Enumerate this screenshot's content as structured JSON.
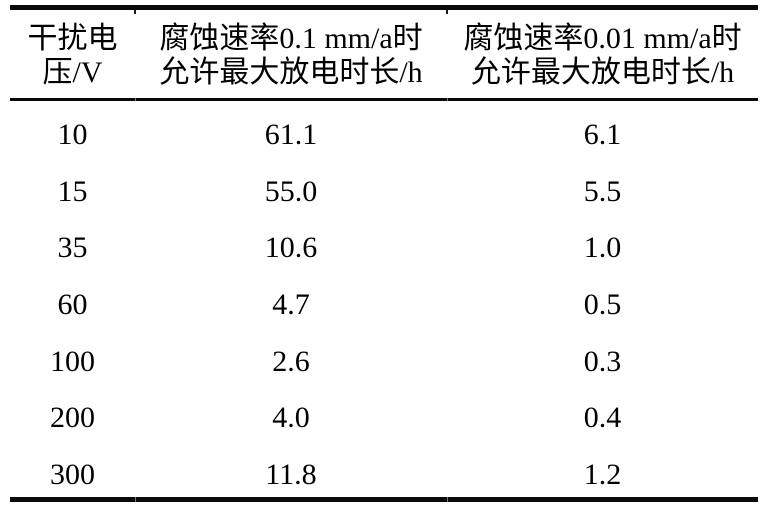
{
  "chart_data": {
    "type": "table",
    "columns": [
      {
        "id": "interference-voltage",
        "header_line1": "干扰电",
        "header_line2": "压/V"
      },
      {
        "id": "max-discharge-duration-at-0.1mm-a",
        "header_line1": "腐蚀速率0.1 mm/a时",
        "header_line2": "允许最大放电时长/h"
      },
      {
        "id": "max-discharge-duration-at-0.01mm-a",
        "header_line1": "腐蚀速率0.01 mm/a时",
        "header_line2": "允许最大放电时长/h"
      }
    ],
    "rows": [
      [
        "10",
        "61.1",
        "6.1"
      ],
      [
        "15",
        "55.0",
        "5.5"
      ],
      [
        "35",
        "10.6",
        "1.0"
      ],
      [
        "60",
        "4.7",
        "0.5"
      ],
      [
        "100",
        "2.6",
        "0.3"
      ],
      [
        "200",
        "4.0",
        "0.4"
      ],
      [
        "300",
        "11.8",
        "1.2"
      ]
    ],
    "layout": {
      "style": "three-line-booktabs",
      "alignment": "center",
      "header_lines_per_column": 2,
      "grid": "horizontal-rules-only"
    }
  },
  "colors": {
    "text": "#000000",
    "rule": "#0a0a0a",
    "background": "#ffffff"
  }
}
